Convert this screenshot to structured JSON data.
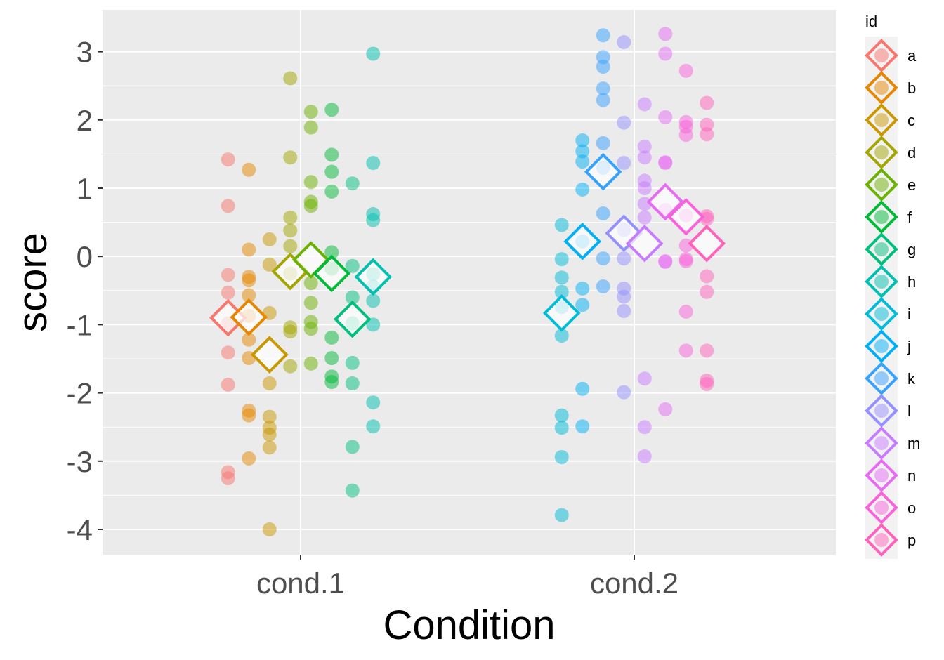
{
  "chart_data": {
    "type": "scatter",
    "title": "",
    "xlabel": "Condition",
    "ylabel": "score",
    "categories": [
      "cond.1",
      "cond.2"
    ],
    "ylim": [
      -4.4,
      3.6
    ],
    "yticks": [
      -4,
      -3,
      -2,
      -1,
      0,
      1,
      2,
      3
    ],
    "grid": true,
    "legend": {
      "title": "id",
      "position": "right"
    },
    "series": [
      {
        "name": "a",
        "color": "#F8766D",
        "category": "cond.1",
        "points": [
          1.42,
          0.74,
          -0.27,
          -0.53,
          -0.98,
          -1.41,
          -1.88,
          -3.16,
          -3.25
        ],
        "mean": -0.9
      },
      {
        "name": "b",
        "color": "#E58700",
        "category": "cond.1",
        "points": [
          1.27,
          0.1,
          -0.3,
          -0.35,
          -0.57,
          -0.87,
          -1.22,
          -1.49,
          -2.26,
          -2.33,
          -2.96
        ],
        "mean": -0.89
      },
      {
        "name": "c",
        "color": "#C99800",
        "category": "cond.1",
        "points": [
          0.25,
          -0.12,
          -0.83,
          -1.86,
          -2.35,
          -2.51,
          -2.61,
          -2.8,
          -4.0
        ],
        "mean": -1.44
      },
      {
        "name": "d",
        "color": "#A3A500",
        "category": "cond.1",
        "points": [
          2.61,
          1.45,
          0.57,
          0.38,
          0.15,
          -0.25,
          -1.04,
          -1.1,
          -1.61
        ],
        "mean": -0.22
      },
      {
        "name": "e",
        "color": "#6BB100",
        "category": "cond.1",
        "points": [
          2.12,
          1.89,
          1.09,
          0.8,
          0.74,
          -0.39,
          -0.68,
          -0.96,
          -1.06,
          -1.57
        ],
        "mean": -0.05
      },
      {
        "name": "f",
        "color": "#00BA38",
        "category": "cond.1",
        "points": [
          2.15,
          1.49,
          1.24,
          0.95,
          0.06,
          -0.18,
          -1.19,
          -1.49,
          -1.76,
          -1.84
        ],
        "mean": -0.25
      },
      {
        "name": "g",
        "color": "#00BF7D",
        "category": "cond.1",
        "points": [
          1.07,
          -0.14,
          -0.6,
          -0.98,
          -1.56,
          -1.86,
          -2.79,
          -3.43
        ],
        "mean": -0.92
      },
      {
        "name": "h",
        "color": "#00C0AF",
        "category": "cond.1",
        "points": [
          2.97,
          1.37,
          0.62,
          0.53,
          -0.26,
          -0.44,
          -0.65,
          -1.0,
          -2.14,
          -2.49
        ],
        "mean": -0.3
      },
      {
        "name": "i",
        "color": "#00BCD8",
        "category": "cond.2",
        "points": [
          0.46,
          -0.04,
          -0.31,
          -0.52,
          -0.74,
          -1.16,
          -2.33,
          -2.51,
          -2.94,
          -3.79
        ],
        "mean": -0.83
      },
      {
        "name": "j",
        "color": "#00B0F6",
        "category": "cond.2",
        "points": [
          1.7,
          1.54,
          1.39,
          0.98,
          0.22,
          -0.47,
          -0.71,
          -1.94,
          -2.49
        ],
        "mean": 0.22
      },
      {
        "name": "k",
        "color": "#35A2FF",
        "category": "cond.2",
        "points": [
          3.24,
          2.92,
          2.78,
          2.46,
          2.29,
          1.66,
          1.3,
          0.63,
          -0.03,
          -0.44
        ],
        "mean": 1.24
      },
      {
        "name": "l",
        "color": "#9590FF",
        "category": "cond.2",
        "points": [
          3.14,
          1.96,
          1.37,
          0.39,
          -0.03,
          -0.47,
          -0.59,
          -0.8,
          -1.99
        ],
        "mean": 0.34
      },
      {
        "name": "m",
        "color": "#C77CFF",
        "category": "cond.2",
        "points": [
          2.23,
          1.61,
          1.45,
          1.11,
          1.0,
          0.77,
          0.57,
          -1.79,
          -2.5,
          -2.93
        ],
        "mean": 0.19
      },
      {
        "name": "n",
        "color": "#E76BF3",
        "category": "cond.2",
        "points": [
          3.26,
          2.97,
          2.04,
          1.38,
          1.37,
          0.68,
          -0.07,
          -0.08,
          -2.24
        ],
        "mean": 0.8
      },
      {
        "name": "o",
        "color": "#FA62DB",
        "category": "cond.2",
        "points": [
          2.72,
          1.97,
          1.9,
          1.78,
          0.6,
          0.16,
          -0.04,
          -0.07,
          -0.81,
          -1.38
        ],
        "mean": 0.58
      },
      {
        "name": "p",
        "color": "#FF62BC",
        "category": "cond.2",
        "points": [
          2.25,
          1.93,
          1.79,
          0.59,
          0.55,
          -0.29,
          -0.52,
          -1.38,
          -1.82,
          -1.87
        ],
        "mean": 0.19
      }
    ]
  }
}
